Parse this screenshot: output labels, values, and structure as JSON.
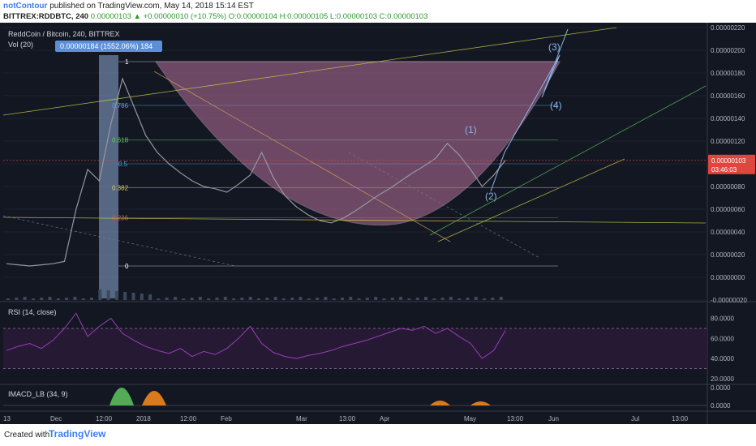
{
  "header": {
    "user": "notContour",
    "published": "published on TradingView.com, May 14, 2018 15:14 EST",
    "symbol": "BITTREX:RDDBTC, 240",
    "last": "0.00000103",
    "change": "▲ +0.00000010 (+10.75%)",
    "ohlc_o": "O:0.00000104",
    "ohlc_h": "H:0.00000105",
    "ohlc_l": "L:0.00000103",
    "ohlc_c": "C:0.00000103"
  },
  "footer": {
    "created_with": "Created with",
    "brand": "TradingView"
  },
  "chart_data": {
    "type": "line",
    "title": "ReddCoin / Bitcoin, 240, BITTREX",
    "indicators": [
      "Vol (20)",
      "RSI (14, close)",
      "IMACD_LB (34, 9)"
    ],
    "x_ticks": [
      "13",
      "Dec",
      "12:00",
      "2018",
      "12:00",
      "Feb",
      "Mar",
      "13:00",
      "Apr",
      "May",
      "13:00",
      "Jun",
      "Jul",
      "13:00"
    ],
    "price_ticks": [
      "0.00000220",
      "0.00000200",
      "0.00000180",
      "0.00000160",
      "0.00000140",
      "0.00000120",
      "0.00000100",
      "0.00000080",
      "0.00000060",
      "0.00000040",
      "0.00000020",
      "0.00000000",
      "-0.00000020"
    ],
    "price_range": [
      -2e-07,
      2.2e-06
    ],
    "rsi_ticks": [
      "80.0000",
      "60.0000",
      "40.0000",
      "20.0000"
    ],
    "rsi_range": [
      15,
      95
    ],
    "macd_ticks": [
      "0.0000",
      "0.0000"
    ],
    "current_price_label": "0.00000103",
    "countdown_label": "03:46:03",
    "measure_label": "0.00000184 (1552.06%) 184",
    "fib_levels": [
      {
        "label": "1",
        "ratio": 1,
        "color": "#ffffff"
      },
      {
        "label": "0.786",
        "ratio": 0.786,
        "color": "#4fa3e0"
      },
      {
        "label": "0.618",
        "ratio": 0.618,
        "color": "#5fc55f"
      },
      {
        "label": "0.5",
        "ratio": 0.5,
        "color": "#4fa3e0"
      },
      {
        "label": "0.382",
        "ratio": 0.382,
        "color": "#cfd34a"
      },
      {
        "label": "0.236",
        "ratio": 0.236,
        "color": "#e05050"
      },
      {
        "label": "0",
        "ratio": 0,
        "color": "#ffffff"
      }
    ],
    "fib_range": [
      1e-07,
      1.9e-06
    ],
    "wave_labels": [
      "(1)",
      "(2)",
      "(3)",
      "(4)"
    ],
    "price_series": [
      1.2e-07,
      1.1e-07,
      1e-07,
      1.1e-07,
      1.2e-07,
      1.4e-07,
      6e-07,
      9.5e-07,
      8.5e-07,
      1.35e-06,
      1.75e-06,
      1.5e-06,
      1.25e-06,
      1.1e-06,
      1e-06,
      9.2e-07,
      8.5e-07,
      8e-07,
      7.8e-07,
      7.5e-07,
      8.2e-07,
      9e-07,
      1.1e-06,
      8.8e-07,
      7.2e-07,
      6.2e-07,
      5.5e-07,
      5e-07,
      4.8e-07,
      5.2e-07,
      5.8e-07,
      6.5e-07,
      7.2e-07,
      7.8e-07,
      8.5e-07,
      9.2e-07,
      9.8e-07,
      1.05e-06,
      1.18e-06,
      1.08e-06,
      9.5e-07,
      8e-07,
      9e-07,
      1.03e-06
    ],
    "rsi_series": [
      48,
      52,
      55,
      50,
      58,
      70,
      85,
      62,
      72,
      80,
      65,
      58,
      52,
      48,
      45,
      50,
      42,
      47,
      44,
      50,
      60,
      72,
      55,
      46,
      42,
      40,
      43,
      45,
      48,
      52,
      55,
      58,
      62,
      66,
      70,
      68,
      72,
      65,
      70,
      62,
      55,
      40,
      48,
      68
    ],
    "colors": {
      "background": "#131722",
      "cup": "#b5709a",
      "price": "#9598a1",
      "rsi": "#9b3fb5",
      "accent": "#3d7ef0",
      "current": "#e0463e",
      "wave": "#8ab4e8"
    }
  }
}
